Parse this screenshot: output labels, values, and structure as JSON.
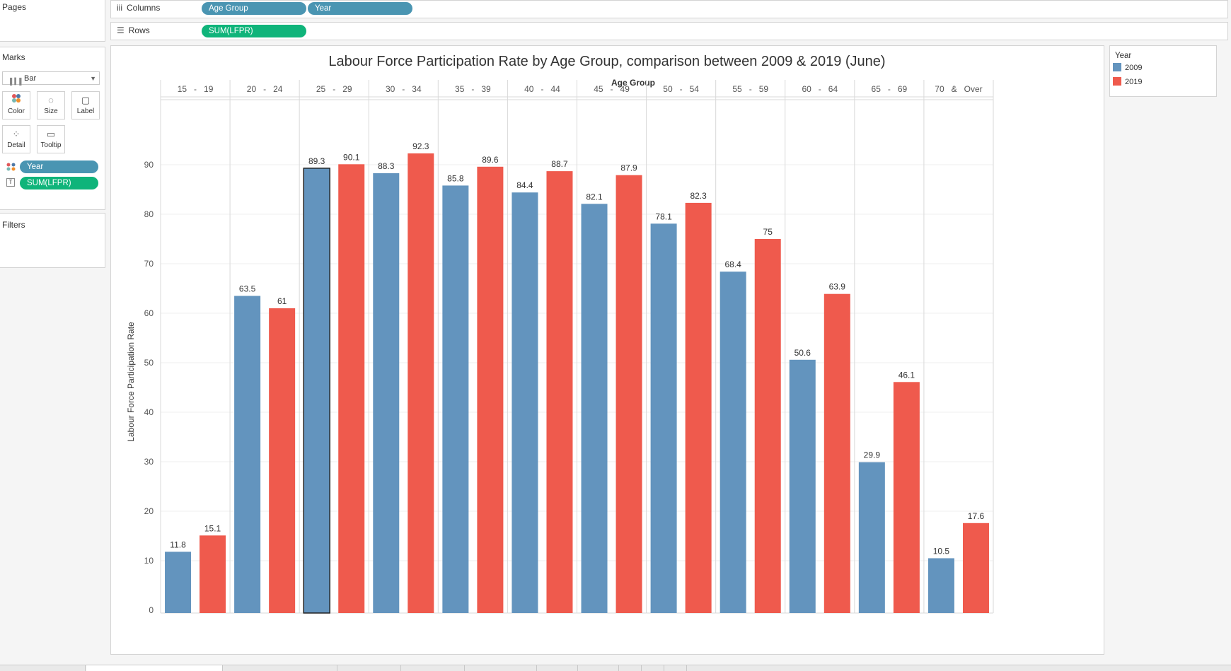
{
  "left_panel": {
    "pages_label": "Pages",
    "marks_label": "Marks",
    "mark_type": "Bar",
    "mark_buttons": [
      {
        "label": "Color",
        "icon": "color-icon"
      },
      {
        "label": "Size",
        "icon": "size-icon"
      },
      {
        "label": "Label",
        "icon": "label-icon"
      },
      {
        "label": "Detail",
        "icon": "detail-icon"
      },
      {
        "label": "Tooltip",
        "icon": "tooltip-icon"
      }
    ],
    "mark_pills": [
      "Year",
      "SUM(LFPR)"
    ],
    "filters_label": "Filters"
  },
  "shelves": {
    "columns_label": "Columns",
    "columns_pills": [
      "Age Group",
      "Year"
    ],
    "rows_label": "Rows",
    "rows_pills": [
      "SUM(LFPR)"
    ]
  },
  "legend": {
    "title": "Year",
    "items": [
      {
        "label": "2009",
        "color": "#6394be"
      },
      {
        "label": "2019",
        "color": "#ef5a4d"
      }
    ]
  },
  "chart_data": {
    "type": "bar",
    "title": "Labour Force Participation Rate by Age Group, comparison between 2009 & 2019 (June)",
    "xlabel": "Age Group",
    "ylabel": "Labour Force Participation Rate",
    "categories": [
      "15   -   19",
      "20   -   24",
      "25   -   29",
      "30   -   34",
      "35   -   39",
      "40   -   44",
      "45   -   49",
      "50   -   54",
      "55   -   59",
      "60   -   64",
      "65   -   69",
      "70   &   Over"
    ],
    "series": [
      {
        "name": "2009",
        "color": "#6394be",
        "values": [
          11.8,
          63.5,
          89.3,
          88.3,
          85.8,
          84.4,
          82.1,
          78.1,
          68.4,
          50.6,
          29.9,
          10.5
        ]
      },
      {
        "name": "2019",
        "color": "#ef5a4d",
        "values": [
          15.1,
          61,
          90.1,
          92.3,
          89.6,
          88.7,
          87.9,
          82.3,
          75,
          63.9,
          46.1,
          17.6
        ]
      }
    ],
    "ylim": [
      0,
      98
    ],
    "yticks": [
      0,
      10,
      20,
      30,
      40,
      50,
      60,
      70,
      80,
      90
    ],
    "grid": true,
    "legend_position": "right",
    "selected": {
      "category": "25   -   29",
      "series": "2009"
    }
  }
}
